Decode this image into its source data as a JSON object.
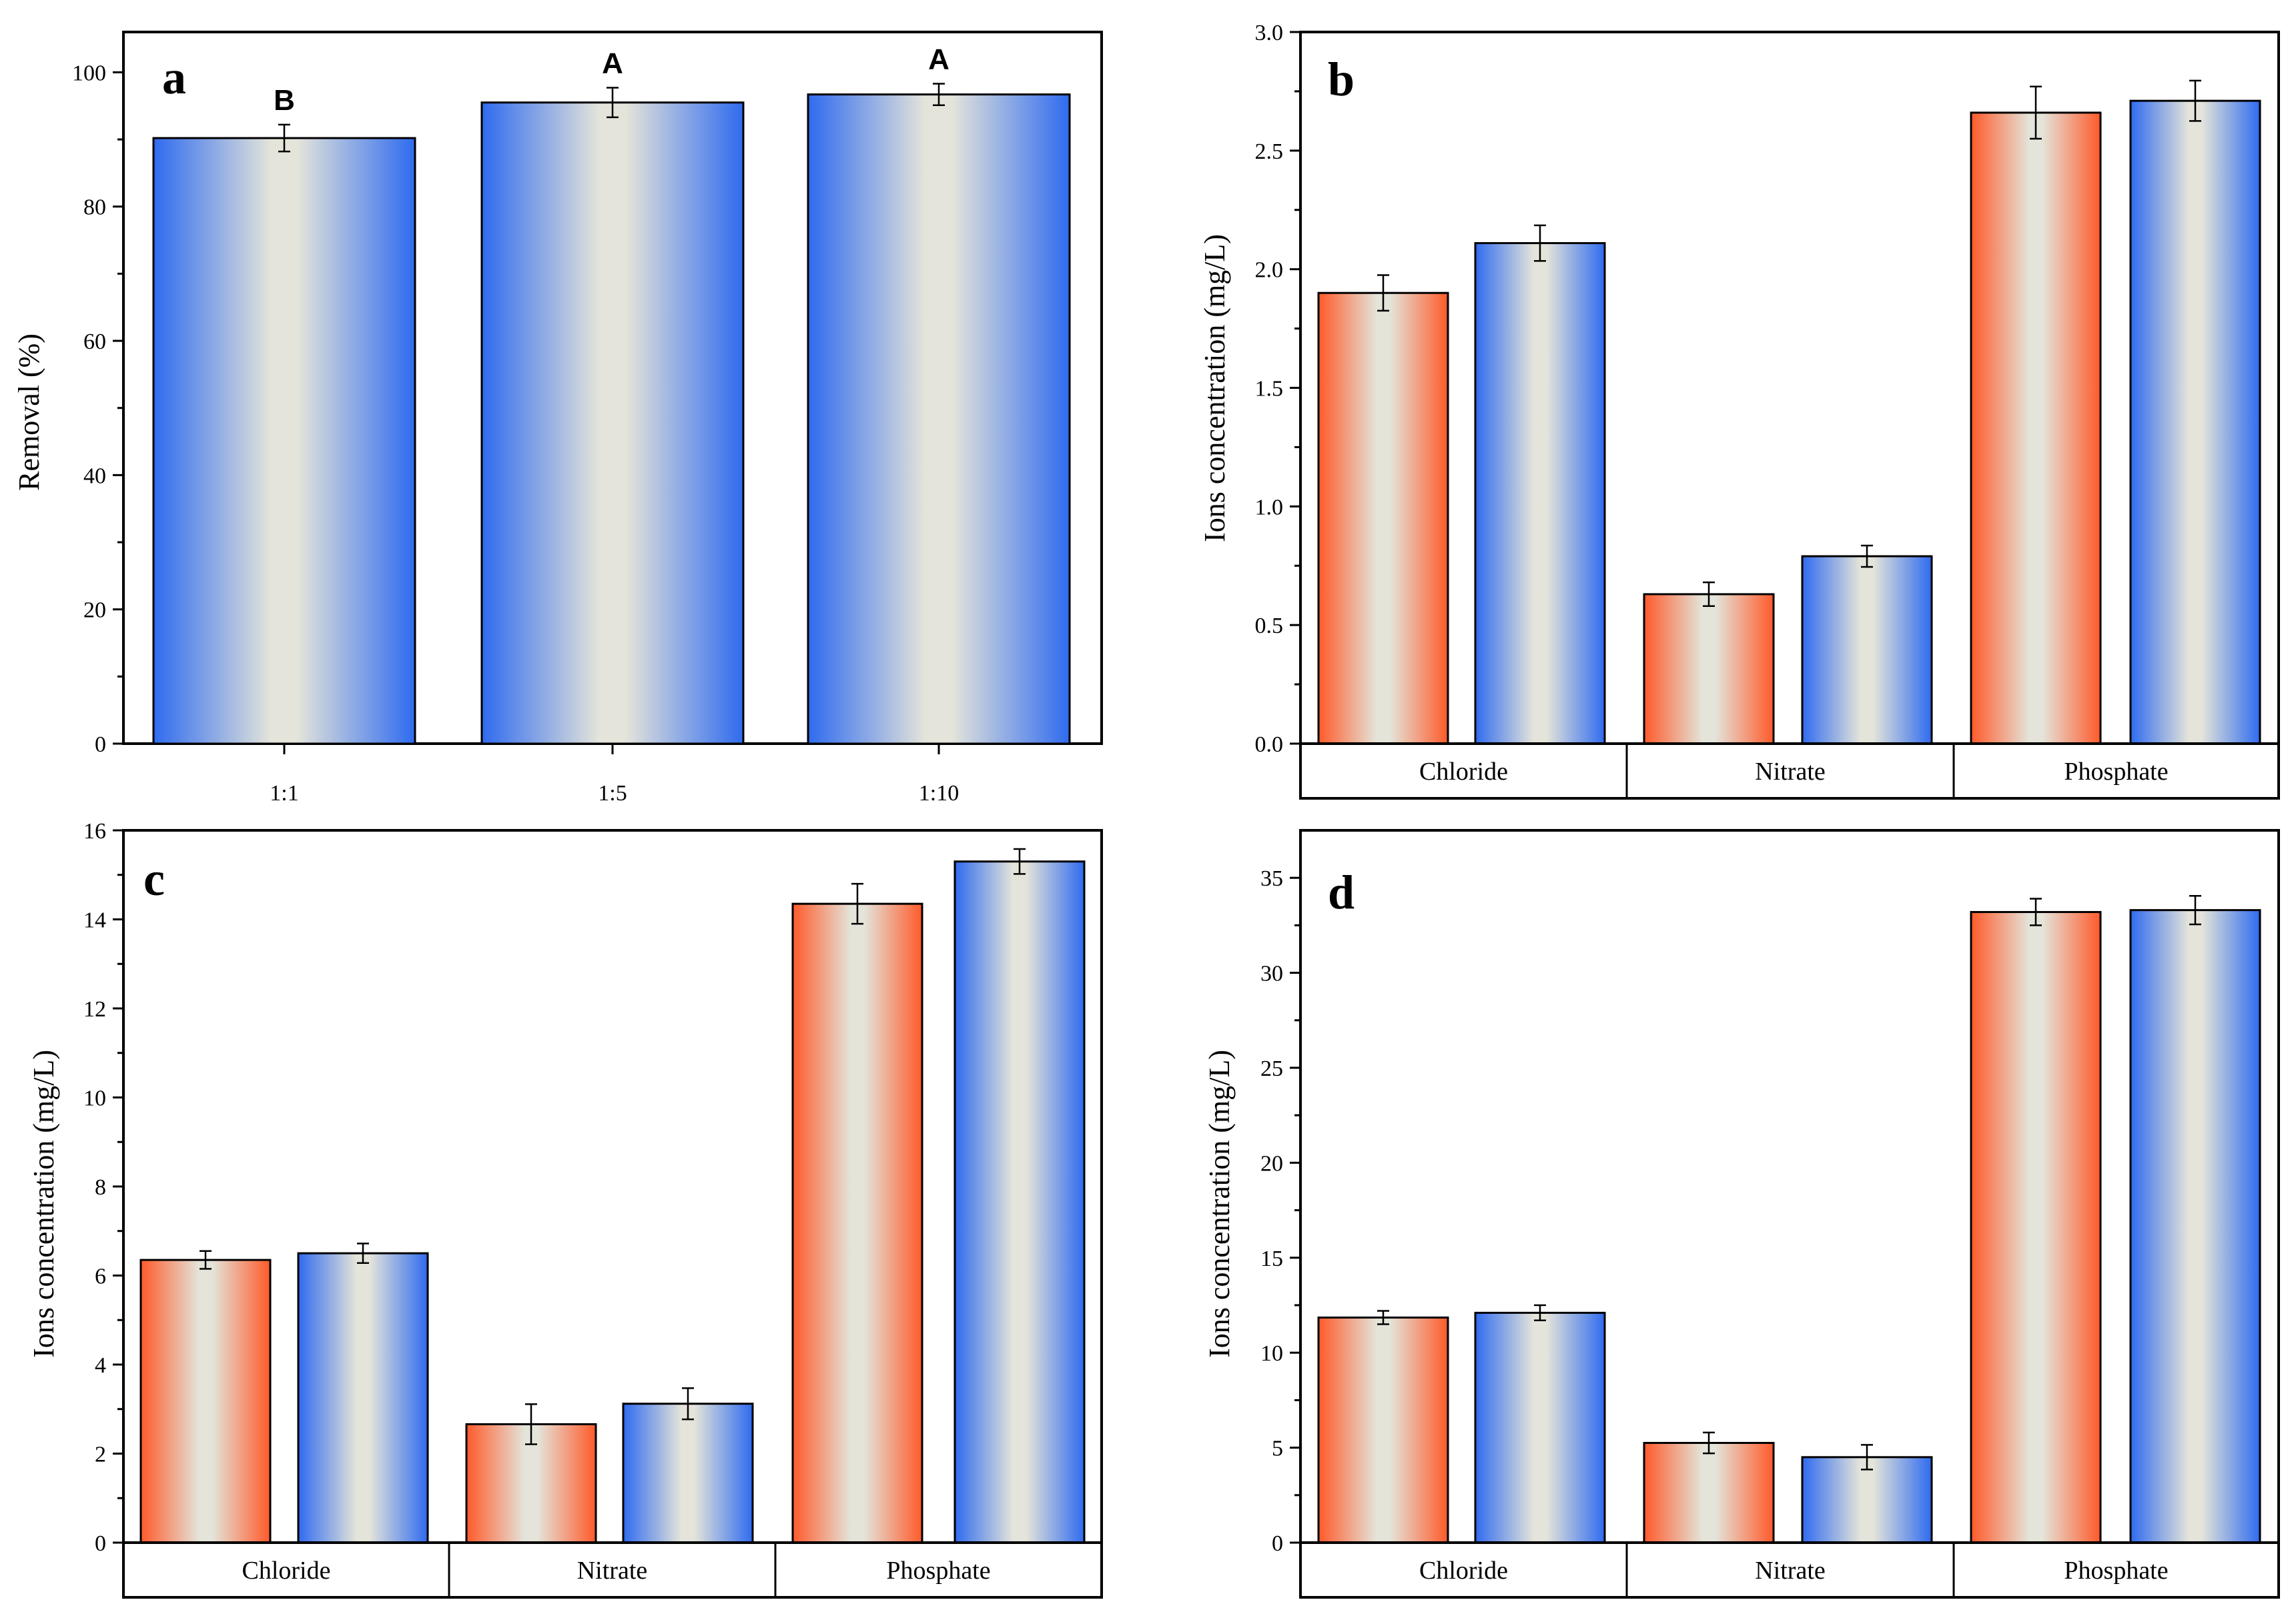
{
  "colors": {
    "red": "#ff5a2a",
    "blue": "#2f6bef",
    "center": "#e4e4da"
  },
  "chart_data": [
    {
      "id": "a",
      "panel_letter": "a",
      "type": "bar",
      "ylabel": "Removal (%)",
      "ylim": [
        0,
        106
      ],
      "yticks": [
        0,
        20,
        40,
        60,
        80,
        100
      ],
      "ytick_labels": [
        "0",
        "20",
        "40",
        "60",
        "80",
        "100"
      ],
      "categories": [
        "1:1",
        "1:5",
        "1:10"
      ],
      "series": [
        {
          "name": "blue",
          "color": "blue",
          "values": [
            90.2,
            95.5,
            96.7
          ],
          "errors": [
            2.0,
            2.2,
            1.6
          ]
        }
      ],
      "annotations": [
        "B",
        "A",
        "A"
      ]
    },
    {
      "id": "b",
      "panel_letter": "b",
      "type": "bar",
      "ylabel": "Ions concentration (mg/L)",
      "ylim": [
        0,
        3.0
      ],
      "yticks": [
        0,
        0.5,
        1.0,
        1.5,
        2.0,
        2.5,
        3.0
      ],
      "ytick_labels": [
        "0.0",
        "0.5",
        "1.0",
        "1.5",
        "2.0",
        "2.5",
        "3.0"
      ],
      "categories": [
        "Chloride",
        "Nitrate",
        "Phosphate"
      ],
      "series": [
        {
          "name": "red",
          "color": "red",
          "values": [
            1.9,
            0.63,
            2.66
          ],
          "errors": [
            0.075,
            0.05,
            0.11
          ]
        },
        {
          "name": "blue",
          "color": "blue",
          "values": [
            2.11,
            0.79,
            2.71
          ],
          "errors": [
            0.075,
            0.045,
            0.085
          ]
        }
      ]
    },
    {
      "id": "c",
      "panel_letter": "c",
      "type": "bar",
      "ylabel": "Ions concentration (mg/L)",
      "ylim": [
        0,
        16
      ],
      "yticks": [
        0,
        2,
        4,
        6,
        8,
        10,
        12,
        14,
        16
      ],
      "ytick_labels": [
        "0",
        "2",
        "4",
        "6",
        "8",
        "10",
        "12",
        "14",
        "16"
      ],
      "categories": [
        "Chloride",
        "Nitrate",
        "Phosphate"
      ],
      "series": [
        {
          "name": "red",
          "color": "red",
          "values": [
            6.35,
            2.66,
            14.35
          ],
          "errors": [
            0.2,
            0.45,
            0.45
          ]
        },
        {
          "name": "blue",
          "color": "blue",
          "values": [
            6.5,
            3.12,
            15.3
          ],
          "errors": [
            0.22,
            0.35,
            0.28
          ]
        }
      ]
    },
    {
      "id": "d",
      "panel_letter": "d",
      "type": "bar",
      "ylabel": "Ions concentration (mg/L)",
      "ylim": [
        0,
        37.5
      ],
      "yticks": [
        0,
        5,
        10,
        15,
        20,
        25,
        30,
        35
      ],
      "ytick_labels": [
        "0",
        "5",
        "10",
        "15",
        "20",
        "25",
        "30",
        "35"
      ],
      "categories": [
        "Chloride",
        "Nitrate",
        "Phosphate"
      ],
      "series": [
        {
          "name": "red",
          "color": "red",
          "values": [
            11.85,
            5.25,
            33.2
          ],
          "errors": [
            0.35,
            0.55,
            0.7
          ]
        },
        {
          "name": "blue",
          "color": "blue",
          "values": [
            12.1,
            4.5,
            33.3
          ],
          "errors": [
            0.4,
            0.65,
            0.75
          ]
        }
      ]
    }
  ]
}
